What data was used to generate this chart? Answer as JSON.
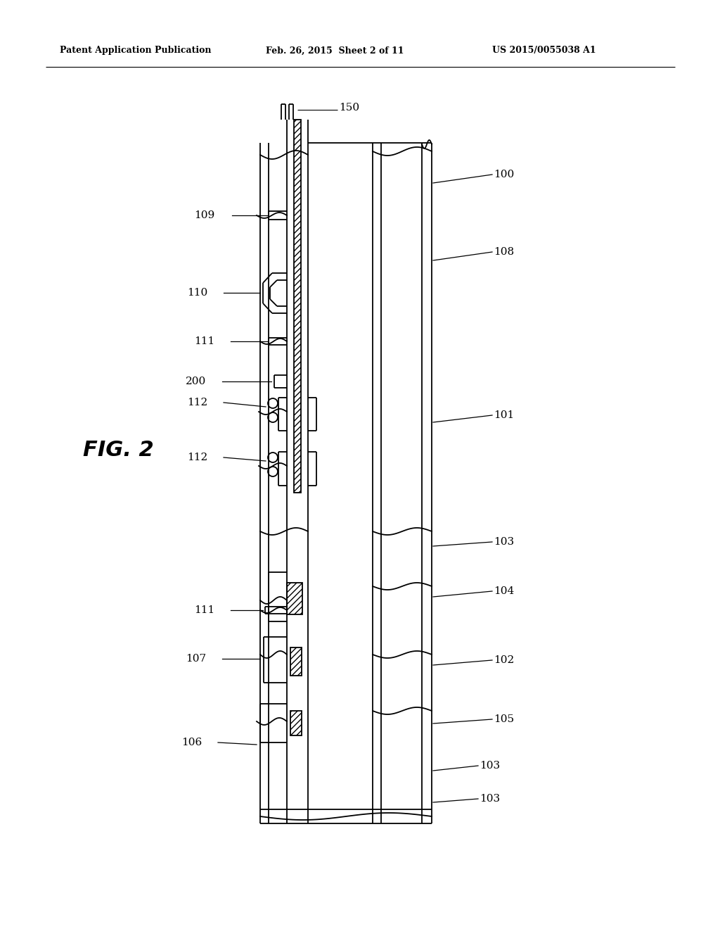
{
  "bg_color": "#ffffff",
  "line_color": "#000000",
  "header_left": "Patent Application Publication",
  "header_mid": "Feb. 26, 2015  Sheet 2 of 11",
  "header_right": "US 2015/0055038 A1",
  "fig_label": "FIG. 2",
  "lw_main": 1.3,
  "lw_thin": 0.8,
  "fs_label": 11
}
